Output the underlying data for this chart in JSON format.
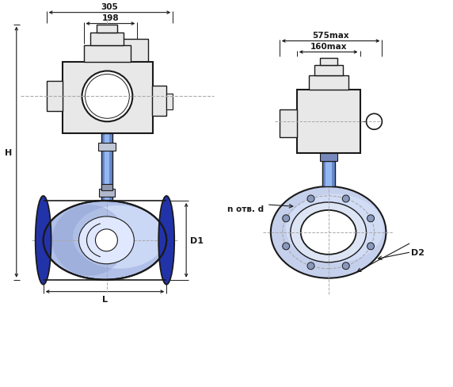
{
  "bg_color": "#ffffff",
  "lc": "#1a1a1a",
  "blue_dark": "#2233aa",
  "blue_mid": "#5577cc",
  "blue_light": "#99aadd",
  "blue_fill": "#aabbee",
  "blue_pale": "#ccd5ee",
  "blue_stem": "#6688cc",
  "gray_act": "#e8e8e8",
  "gray_dark": "#cccccc",
  "dash_color": "#aaaaaa",
  "dim_color": "#111111",
  "labels": {
    "305": "305",
    "198": "198",
    "575max": "575max",
    "160max": "160max",
    "H": "H",
    "D1": "D1",
    "L": "L",
    "D2": "D2",
    "n_otv_d": "n отв. d"
  },
  "view_sep": 270
}
